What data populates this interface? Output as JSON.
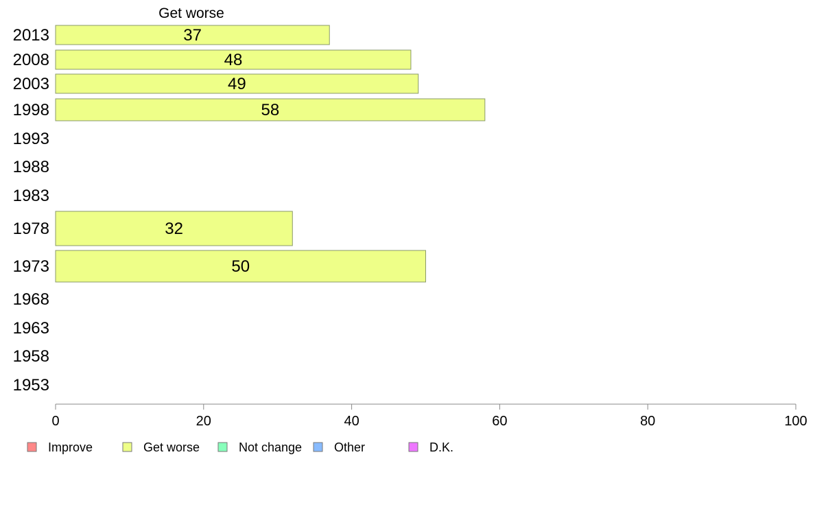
{
  "chart_data": {
    "type": "bar",
    "orientation": "horizontal",
    "title": "Get worse",
    "categories": [
      "2013",
      "2008",
      "2003",
      "1998",
      "1993",
      "1988",
      "1983",
      "1978",
      "1973",
      "1968",
      "1963",
      "1958",
      "1953"
    ],
    "series": [
      {
        "name": "Get worse",
        "values": [
          37,
          48,
          49,
          58,
          null,
          null,
          null,
          32,
          50,
          null,
          null,
          null,
          null
        ],
        "color": "#eeff88"
      }
    ],
    "xlim": [
      0,
      100
    ],
    "xticks": [
      0,
      20,
      40,
      60,
      80,
      100
    ],
    "grid": false,
    "legend_position": "bottom",
    "legend": [
      {
        "label": "Improve",
        "color": "#ff8888"
      },
      {
        "label": "Get worse",
        "color": "#eeff88"
      },
      {
        "label": "Not change",
        "color": "#88ffbb"
      },
      {
        "label": "Other",
        "color": "#88bbff"
      },
      {
        "label": "D.K.",
        "color": "#ee77ff"
      }
    ]
  }
}
